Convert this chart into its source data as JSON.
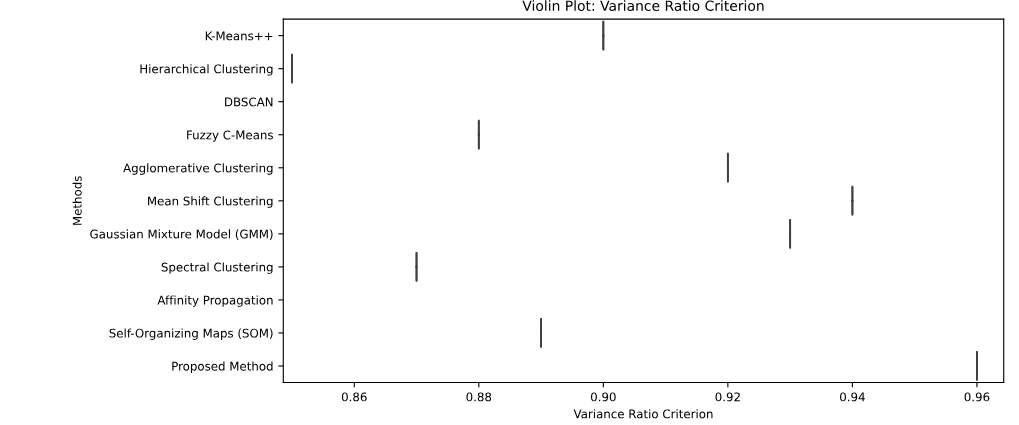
{
  "chart_data": {
    "type": "box",
    "orientation": "horizontal",
    "title": "Violin Plot: Variance Ratio Criterion",
    "xlabel": "Variance Ratio Criterion",
    "ylabel": "Methods",
    "categories": [
      "K-Means++",
      "Hierarchical Clustering",
      "DBSCAN",
      "Fuzzy C-Means",
      "Agglomerative Clustering",
      "Mean Shift Clustering",
      "Gaussian Mixture Model (GMM)",
      "Spectral Clustering",
      "Affinity Propagation",
      "Self-Organizing Maps (SOM)",
      "Proposed Method"
    ],
    "boxes": [
      {
        "low": 0.9,
        "q1": 0.9,
        "median": 0.9,
        "q3": 0.9,
        "high": 0.9
      },
      {
        "low": 0.85,
        "q1": 0.85,
        "median": 0.85,
        "q3": 0.85,
        "high": 0.85
      },
      null,
      {
        "low": 0.88,
        "q1": 0.88,
        "median": 0.88,
        "q3": 0.88,
        "high": 0.88
      },
      {
        "low": 0.92,
        "q1": 0.92,
        "median": 0.92,
        "q3": 0.92,
        "high": 0.92
      },
      {
        "low": 0.94,
        "q1": 0.94,
        "median": 0.94,
        "q3": 0.94,
        "high": 0.94
      },
      {
        "low": 0.93,
        "q1": 0.93,
        "median": 0.93,
        "q3": 0.93,
        "high": 0.93
      },
      {
        "low": 0.87,
        "q1": 0.87,
        "median": 0.87,
        "q3": 0.87,
        "high": 0.87
      },
      null,
      {
        "low": 0.89,
        "q1": 0.89,
        "median": 0.89,
        "q3": 0.89,
        "high": 0.89
      },
      {
        "low": 0.96,
        "q1": 0.96,
        "median": 0.96,
        "q3": 0.96,
        "high": 0.96
      }
    ],
    "color": "#3f3f3f",
    "xlim": [
      0.8486,
      0.9643
    ],
    "xticks": [
      {
        "value": 0.86,
        "label": "0.86"
      },
      {
        "value": 0.88,
        "label": "0.88"
      },
      {
        "value": 0.9,
        "label": "0.90"
      },
      {
        "value": 0.92,
        "label": "0.92"
      },
      {
        "value": 0.94,
        "label": "0.94"
      },
      {
        "value": 0.96,
        "label": "0.96"
      }
    ],
    "grid": false,
    "legend": false
  }
}
